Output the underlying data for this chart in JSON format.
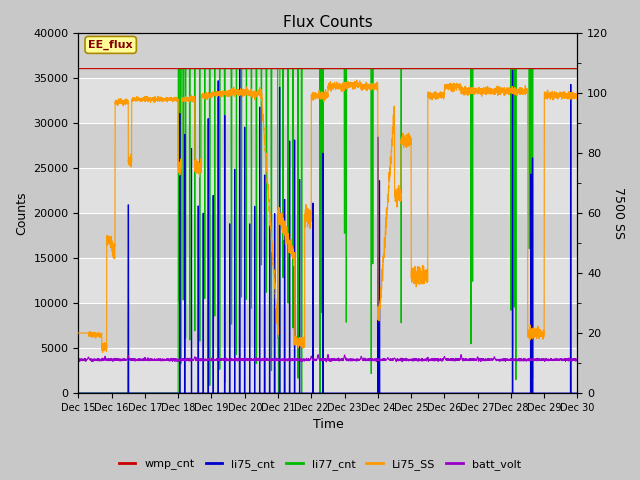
{
  "title": "Flux Counts",
  "xlabel": "Time",
  "ylabel_left": "Counts",
  "ylabel_right": "7500 SS",
  "annotation": "EE_flux",
  "xlim": [
    0,
    15
  ],
  "ylim_left": [
    0,
    40000
  ],
  "ylim_right": [
    0,
    120
  ],
  "bg_color": "#d8d8d8",
  "plot_bg_top": "#e8e8e8",
  "plot_bg_bot": "#d0d0d0",
  "series_colors": {
    "wmp_cnt": "#cc0000",
    "li75_cnt": "#0000cc",
    "li77_cnt": "#00bb00",
    "Li75_SS": "#ff9900",
    "batt_volt": "#9900cc"
  },
  "xtick_labels": [
    "Dec 15",
    "Dec 16",
    "Dec 17",
    "Dec 18",
    "Dec 19",
    "Dec 20",
    "Dec 21",
    "Dec 22",
    "Dec 23",
    "Dec 24",
    "Dec 25",
    "Dec 26",
    "Dec 27",
    "Dec 28",
    "Dec 29",
    "Dec 30"
  ],
  "xtick_positions": [
    0,
    1,
    2,
    3,
    4,
    5,
    6,
    7,
    8,
    9,
    10,
    11,
    12,
    13,
    14,
    15
  ],
  "yticks_left": [
    0,
    5000,
    10000,
    15000,
    20000,
    25000,
    30000,
    35000,
    40000
  ],
  "yticks_right": [
    0,
    20,
    40,
    60,
    80,
    100,
    120
  ],
  "right_axis_ticks_minor": [
    10,
    30,
    50,
    70,
    90,
    110
  ]
}
